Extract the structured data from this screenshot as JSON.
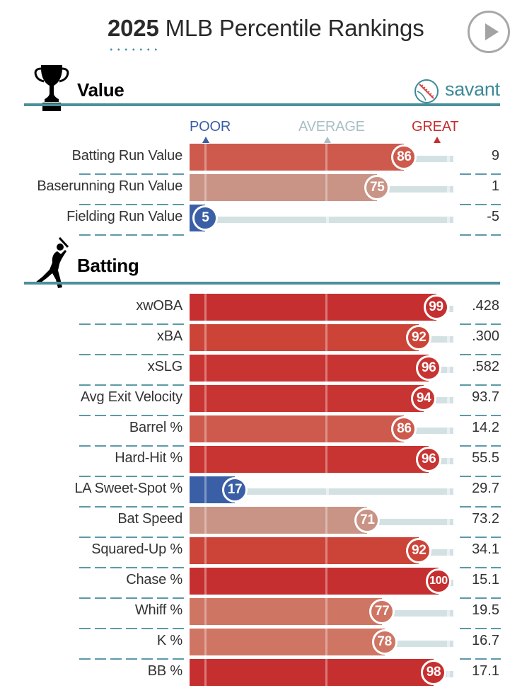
{
  "header": {
    "year": "2025",
    "title_rest": "MLB Percentile Rankings",
    "play_button": "play-icon"
  },
  "sections": {
    "value": {
      "title": "Value",
      "icon": "trophy-icon"
    },
    "batting": {
      "title": "Batting",
      "icon": "batter-silhouette-icon"
    }
  },
  "brand": {
    "name": "savant",
    "icon": "baseball-icon"
  },
  "scale": {
    "poor": "POOR",
    "average": "AVERAGE",
    "great": "GREAT"
  },
  "colors": {
    "accent": "#4a8f9a",
    "poor": "#3a5fa6",
    "average": "#a9bfc6",
    "great": "#c62f2f",
    "track": "#d3e1e3"
  },
  "value_rows": [
    {
      "label": "Batting Run Value",
      "percentile": 86,
      "value": "9"
    },
    {
      "label": "Baserunning Run Value",
      "percentile": 75,
      "value": "1"
    },
    {
      "label": "Fielding Run Value",
      "percentile": 5,
      "value": "-5"
    }
  ],
  "batting_rows": [
    {
      "label": "xwOBA",
      "percentile": 99,
      "value": ".428"
    },
    {
      "label": "xBA",
      "percentile": 92,
      "value": ".300"
    },
    {
      "label": "xSLG",
      "percentile": 96,
      "value": ".582"
    },
    {
      "label": "Avg Exit Velocity",
      "percentile": 94,
      "value": "93.7"
    },
    {
      "label": "Barrel %",
      "percentile": 86,
      "value": "14.2"
    },
    {
      "label": "Hard-Hit %",
      "percentile": 96,
      "value": "55.5"
    },
    {
      "label": "LA Sweet-Spot %",
      "percentile": 17,
      "value": "29.7"
    },
    {
      "label": "Bat Speed",
      "percentile": 71,
      "value": "73.2"
    },
    {
      "label": "Squared-Up %",
      "percentile": 92,
      "value": "34.1"
    },
    {
      "label": "Chase %",
      "percentile": 100,
      "value": "15.1"
    },
    {
      "label": "Whiff %",
      "percentile": 77,
      "value": "19.5"
    },
    {
      "label": "K %",
      "percentile": 78,
      "value": "16.7"
    },
    {
      "label": "BB %",
      "percentile": 98,
      "value": "17.1"
    }
  ]
}
